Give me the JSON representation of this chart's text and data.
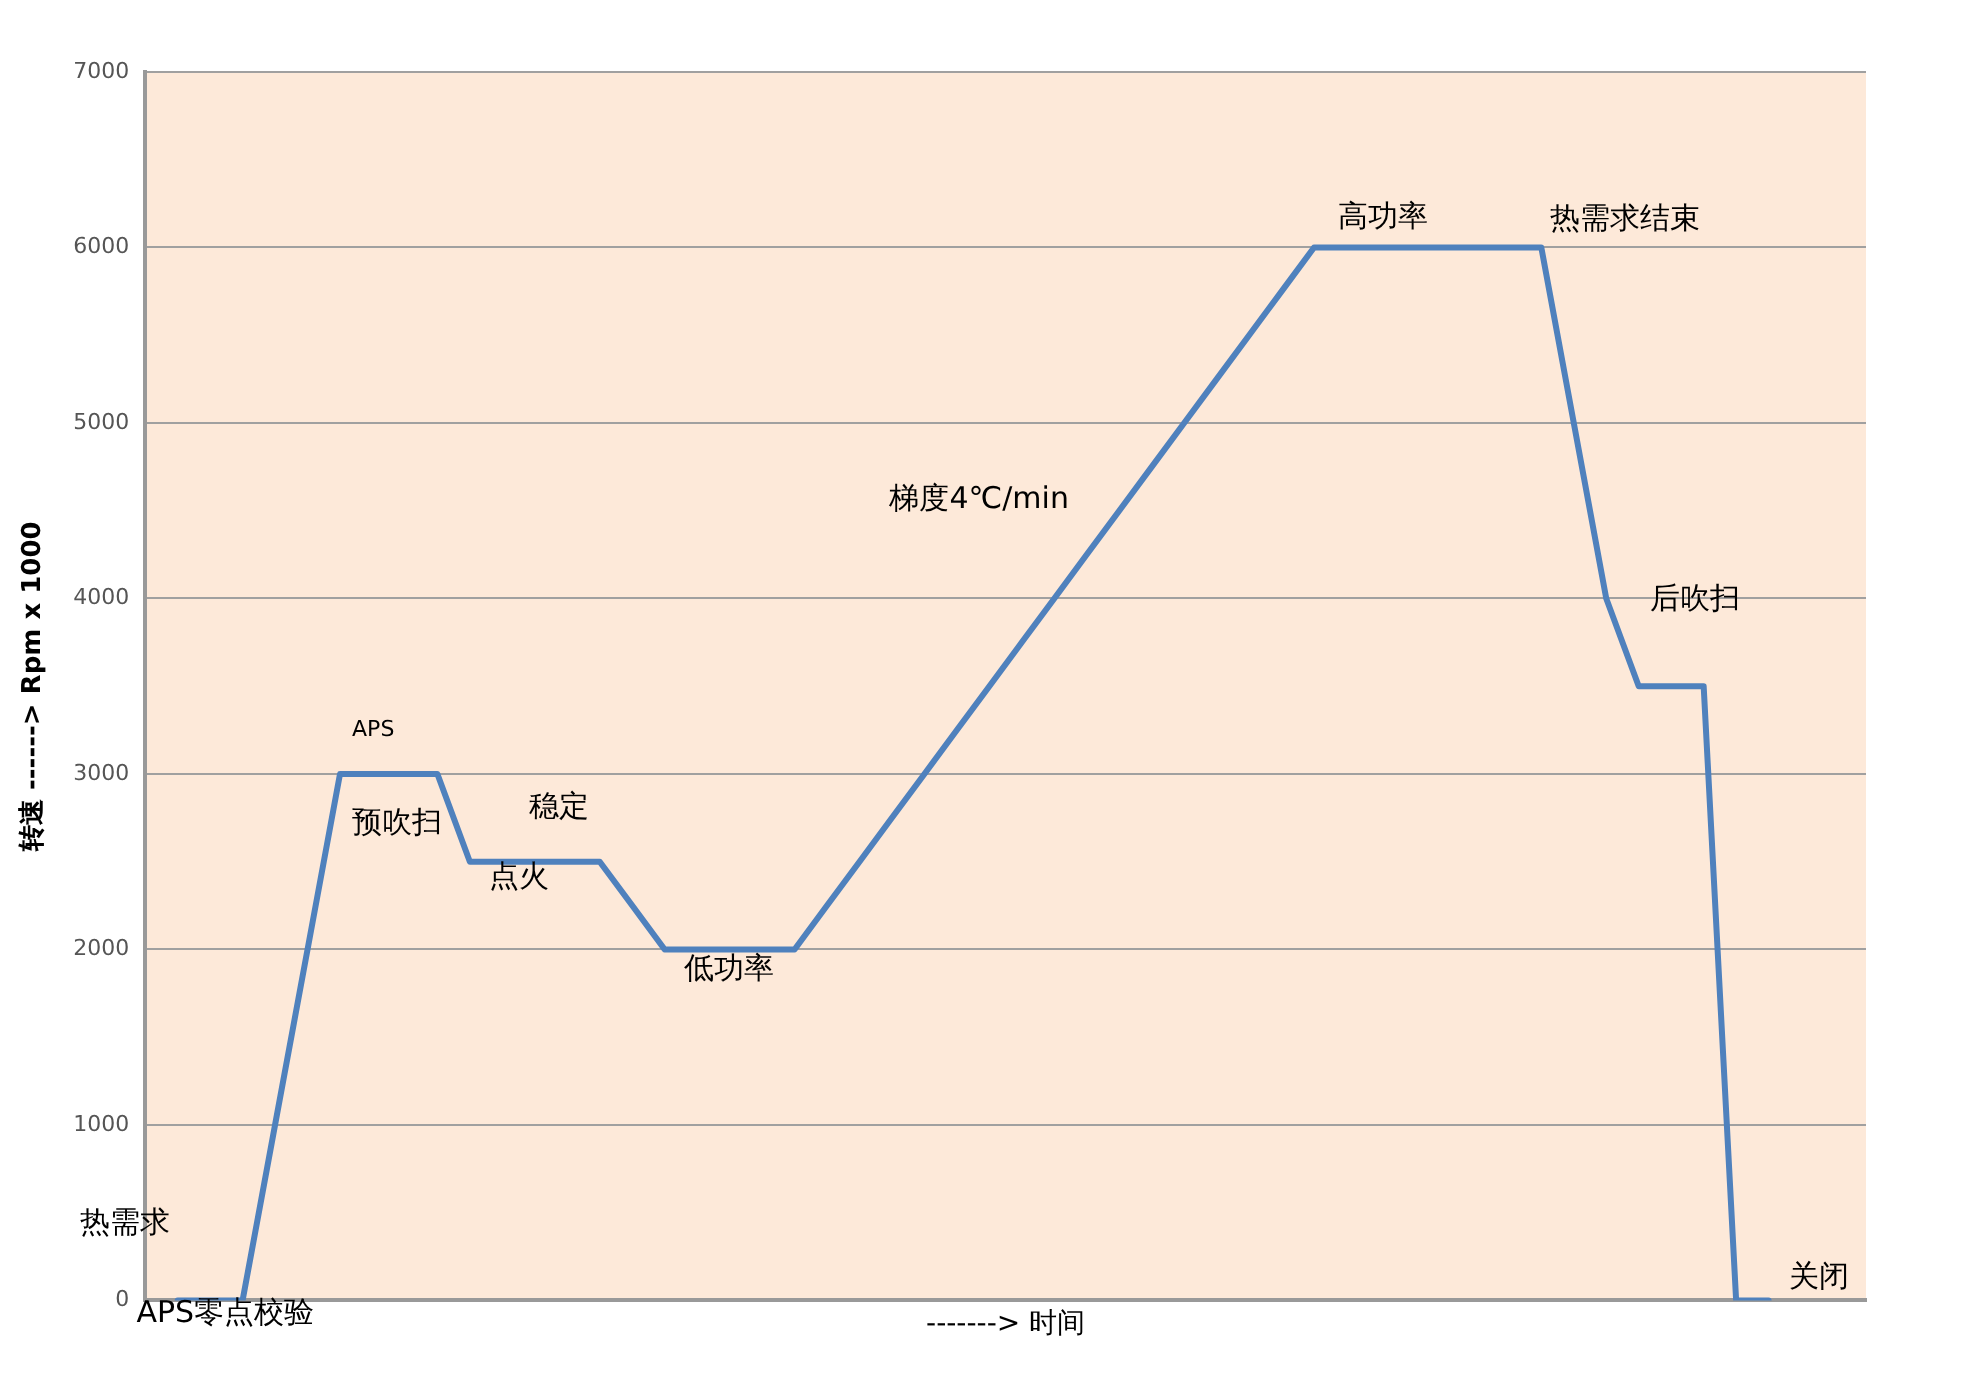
{
  "chart_data": {
    "type": "line",
    "xlabel": "-------> 时间",
    "ylabel": "转速 ------> Rpm x 1000",
    "categories": [
      null,
      null,
      null,
      null,
      null,
      null,
      null,
      null,
      null,
      null,
      null,
      null,
      null,
      null,
      null,
      null,
      null,
      null,
      null,
      null,
      null,
      null,
      null,
      null,
      null,
      null,
      null,
      null,
      null,
      null,
      null,
      null,
      null,
      null,
      null,
      null,
      null,
      null,
      null,
      null,
      null,
      null,
      null,
      null,
      null,
      null,
      null,
      null,
      null,
      null,
      null,
      null,
      null,
      null
    ],
    "series": [
      {
        "color": "#4f81bd",
        "values": [
          null,
          0,
          0,
          0,
          1000,
          2000,
          3000,
          3000,
          3000,
          3000,
          2500,
          2500,
          2500,
          2500,
          2500,
          2250,
          2000,
          2000,
          2000,
          2000,
          2000,
          2250,
          2500,
          2750,
          3000,
          3250,
          3500,
          3750,
          4000,
          4250,
          4500,
          4750,
          5000,
          5250,
          5500,
          5750,
          6000,
          6000,
          6000,
          6000,
          6000,
          6000,
          6000,
          6000,
          5000,
          4000,
          3500,
          3500,
          3500,
          0,
          0,
          null,
          null,
          null
        ]
      }
    ],
    "ylim": [
      0,
      7000
    ],
    "yticks": [
      0,
      1000,
      2000,
      3000,
      4000,
      5000,
      6000,
      7000
    ],
    "tick_labels": "y",
    "grid": "y",
    "legend": false,
    "marker": "none",
    "line_style": "solid",
    "annotations": [
      "热需求",
      "APS零点校验",
      "APS",
      "预吹扫",
      "稳定",
      "点火",
      "低功率",
      "梯度4℃/min",
      "高功率",
      "热需求结束",
      "后吹扫",
      "关闭"
    ]
  }
}
